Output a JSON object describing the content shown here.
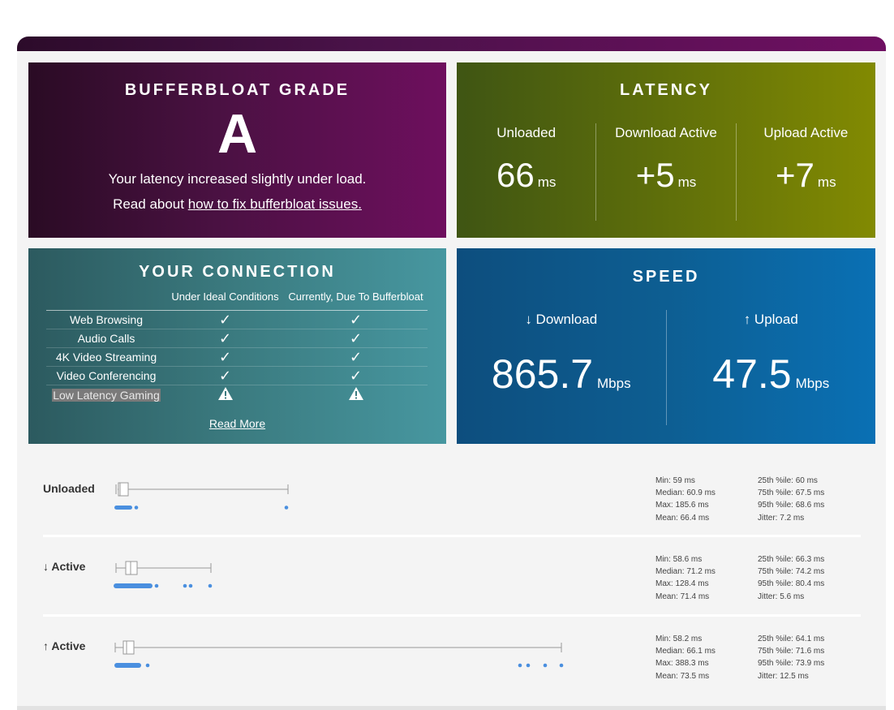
{
  "grade": {
    "title": "BUFFERBLOAT GRADE",
    "letter": "A",
    "message": "Your latency increased slightly under load.",
    "read_prefix": "Read about",
    "link_text": "how to fix bufferbloat issues."
  },
  "latency": {
    "title": "LATENCY",
    "columns": [
      {
        "label": "Unloaded",
        "value": "66",
        "unit": "ms"
      },
      {
        "label": "Download Active",
        "value": "+5",
        "unit": "ms"
      },
      {
        "label": "Upload Active",
        "value": "+7",
        "unit": "ms"
      }
    ]
  },
  "connection": {
    "title": "YOUR CONNECTION",
    "col_ideal": "Under Ideal Conditions",
    "col_current": "Currently, Due To Bufferbloat",
    "rows": [
      {
        "label": "Web Browsing",
        "ideal": "check",
        "current": "check"
      },
      {
        "label": "Audio Calls",
        "ideal": "check",
        "current": "check"
      },
      {
        "label": "4K Video Streaming",
        "ideal": "check",
        "current": "check"
      },
      {
        "label": "Video Conferencing",
        "ideal": "check",
        "current": "check"
      },
      {
        "label": "Low Latency Gaming",
        "ideal": "warning",
        "current": "warning"
      }
    ],
    "read_more": "Read More"
  },
  "speed": {
    "title": "SPEED",
    "download_label": "↓ Download",
    "download_value": "865.7",
    "upload_label": "↑ Upload",
    "upload_value": "47.5",
    "unit": "Mbps"
  },
  "plots": [
    {
      "label": "Unloaded",
      "stats_left": [
        "Min: 59 ms",
        "Median: 60.9 ms",
        "Max: 185.6 ms",
        "Mean: 66.4 ms"
      ],
      "stats_right": [
        "25th %ile: 60 ms",
        "75th %ile: 67.5 ms",
        "95th %ile: 68.6 ms",
        "Jitter: 7.2 ms"
      ]
    },
    {
      "label": "↓ Active",
      "stats_left": [
        "Min: 58.6 ms",
        "Median: 71.2 ms",
        "Max: 128.4 ms",
        "Mean: 71.4 ms"
      ],
      "stats_right": [
        "25th %ile: 66.3 ms",
        "75th %ile: 74.2 ms",
        "95th %ile: 80.4 ms",
        "Jitter: 5.6 ms"
      ]
    },
    {
      "label": "↑ Active",
      "stats_left": [
        "Min: 58.2 ms",
        "Median: 66.1 ms",
        "Max: 388.3 ms",
        "Mean: 73.5 ms"
      ],
      "stats_right": [
        "25th %ile: 64.1 ms",
        "75th %ile: 71.6 ms",
        "95th %ile: 73.9 ms",
        "Jitter: 12.5 ms"
      ]
    }
  ]
}
